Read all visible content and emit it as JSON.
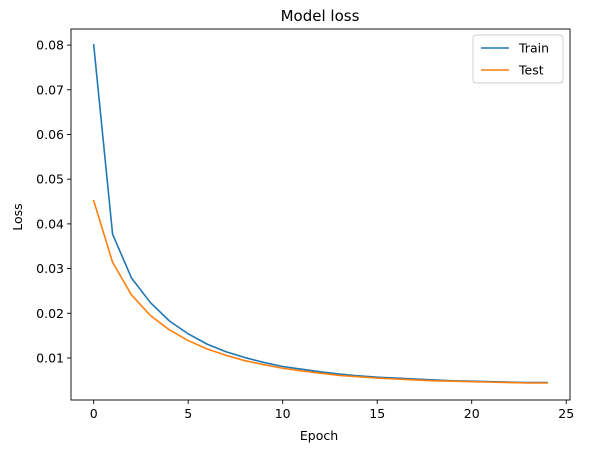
{
  "chart_data": {
    "type": "line",
    "title": "Model loss",
    "xlabel": "Epoch",
    "ylabel": "Loss",
    "xlim": [
      -1.2,
      25.2
    ],
    "ylim": [
      0.0006,
      0.0836
    ],
    "x_ticks": [
      0,
      5,
      10,
      15,
      20,
      25
    ],
    "y_ticks": [
      0.01,
      0.02,
      0.03,
      0.04,
      0.05,
      0.06,
      0.07,
      0.08
    ],
    "y_tick_labels": [
      "0.01",
      "0.02",
      "0.03",
      "0.04",
      "0.05",
      "0.06",
      "0.07",
      "0.08"
    ],
    "grid": false,
    "legend_position": "top-right",
    "x": [
      0,
      1,
      2,
      3,
      4,
      5,
      6,
      7,
      8,
      9,
      10,
      11,
      12,
      13,
      14,
      15,
      16,
      17,
      18,
      19,
      20,
      21,
      22,
      23,
      24
    ],
    "series": [
      {
        "name": "Train",
        "color": "#1f77b4",
        "values": [
          0.0801,
          0.0377,
          0.0279,
          0.0224,
          0.0183,
          0.0154,
          0.0131,
          0.0114,
          0.0101,
          0.009,
          0.0081,
          0.0075,
          0.0069,
          0.0064,
          0.006,
          0.0057,
          0.0055,
          0.0053,
          0.0051,
          0.0049,
          0.0048,
          0.0047,
          0.0046,
          0.0045,
          0.0045
        ]
      },
      {
        "name": "Test",
        "color": "#ff7f0e",
        "values": [
          0.0452,
          0.0314,
          0.0241,
          0.0195,
          0.0163,
          0.0139,
          0.012,
          0.0106,
          0.0094,
          0.0085,
          0.0077,
          0.0071,
          0.0066,
          0.0061,
          0.0058,
          0.0055,
          0.0053,
          0.0051,
          0.0049,
          0.0048,
          0.0047,
          0.0046,
          0.0045,
          0.0044,
          0.0044
        ]
      }
    ]
  }
}
